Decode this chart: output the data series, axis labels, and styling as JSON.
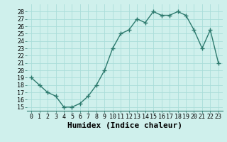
{
  "x": [
    0,
    1,
    2,
    3,
    4,
    5,
    6,
    7,
    8,
    9,
    10,
    11,
    12,
    13,
    14,
    15,
    16,
    17,
    18,
    19,
    20,
    21,
    22,
    23
  ],
  "y": [
    19,
    18,
    17,
    16.5,
    15,
    15,
    15.5,
    16.5,
    18,
    20,
    23,
    25,
    25.5,
    27,
    26.5,
    28,
    27.5,
    27.5,
    28,
    27.5,
    25.5,
    23,
    25.5,
    21
  ],
  "line_color": "#2d7a6e",
  "marker": "+",
  "marker_size": 4,
  "marker_edge_width": 1.0,
  "bg_color": "#cff0ec",
  "grid_color": "#aaddda",
  "xlabel": "Humidex (Indice chaleur)",
  "xlabel_fontsize": 8,
  "ylabel_ticks": [
    15,
    16,
    17,
    18,
    19,
    20,
    21,
    22,
    23,
    24,
    25,
    26,
    27,
    28
  ],
  "ylim": [
    14.5,
    29
  ],
  "xlim": [
    -0.5,
    23.5
  ],
  "xticks": [
    0,
    1,
    2,
    3,
    4,
    5,
    6,
    7,
    8,
    9,
    10,
    11,
    12,
    13,
    14,
    15,
    16,
    17,
    18,
    19,
    20,
    21,
    22,
    23
  ],
  "tick_fontsize": 6,
  "line_width": 1.0
}
